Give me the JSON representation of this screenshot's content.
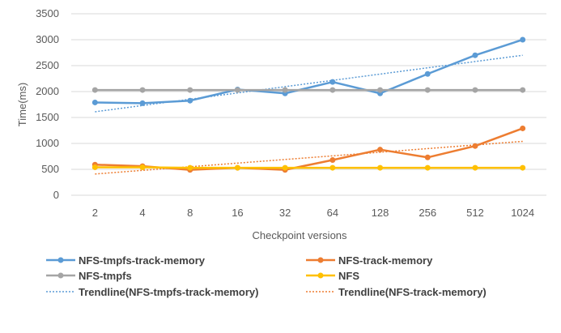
{
  "chart_data": {
    "type": "line",
    "title": "",
    "xlabel": "Checkpoint versions",
    "ylabel": "Time(ms)",
    "categories": [
      "2",
      "4",
      "8",
      "16",
      "32",
      "64",
      "128",
      "256",
      "512",
      "1024"
    ],
    "ylim": [
      0,
      3500
    ],
    "yticks": [
      0,
      500,
      1000,
      1500,
      2000,
      2500,
      3000,
      3500
    ],
    "grid": true,
    "legend_position": "bottom",
    "series": [
      {
        "name": "NFS-tmpfs-track-memory",
        "color": "#5b9bd5",
        "style": "solid",
        "values": [
          1790,
          1775,
          1825,
          2040,
          1965,
          2185,
          1965,
          2340,
          2700,
          3000
        ]
      },
      {
        "name": "NFS-track-memory",
        "color": "#ed7d31",
        "style": "solid",
        "values": [
          590,
          560,
          490,
          530,
          490,
          680,
          880,
          730,
          950,
          1290
        ]
      },
      {
        "name": "NFS-tmpfs",
        "color": "#a5a5a5",
        "style": "solid",
        "values": [
          2030,
          2030,
          2030,
          2030,
          2030,
          2030,
          2030,
          2030,
          2030,
          2030
        ]
      },
      {
        "name": "NFS",
        "color": "#ffc000",
        "style": "solid",
        "values": [
          540,
          540,
          530,
          530,
          530,
          530,
          530,
          530,
          530,
          530
        ]
      }
    ],
    "trendlines": [
      {
        "name": "Trendline(NFS-tmpfs-track-memory)",
        "color": "#5b9bd5",
        "style": "dotted",
        "start": 1610,
        "end": 2700
      },
      {
        "name": "Trendline(NFS-track-memory)",
        "color": "#ed7d31",
        "style": "dotted",
        "start": 410,
        "end": 1040
      }
    ]
  }
}
